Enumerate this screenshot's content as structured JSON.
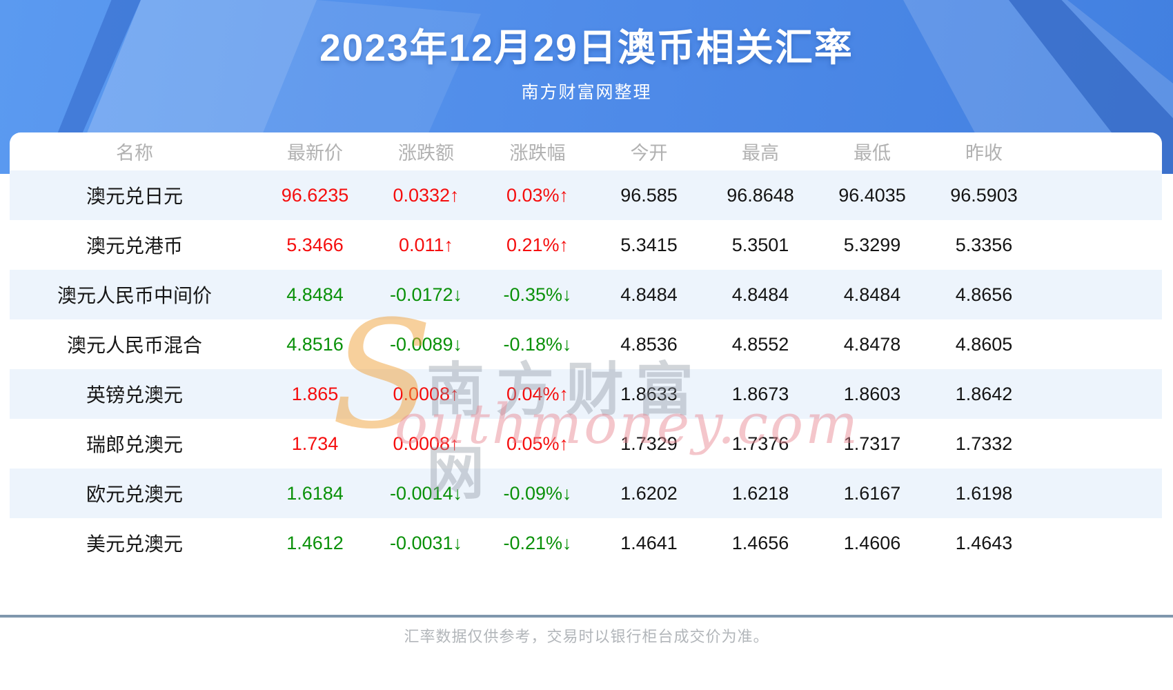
{
  "banner": {
    "title": "2023年12月29日澳币相关汇率",
    "subtitle": "南方财富网整理"
  },
  "table": {
    "columns": [
      "名称",
      "最新价",
      "涨跌额",
      "涨跌幅",
      "今开",
      "最高",
      "最低",
      "昨收"
    ],
    "rows": [
      {
        "name": "澳元兑日元",
        "latest": "96.6235",
        "change": "0.0332↑",
        "change_pct": "0.03%↑",
        "direction": "up",
        "open": "96.585",
        "high": "96.8648",
        "low": "96.4035",
        "prev_close": "96.5903"
      },
      {
        "name": "澳元兑港币",
        "latest": "5.3466",
        "change": "0.011↑",
        "change_pct": "0.21%↑",
        "direction": "up",
        "open": "5.3415",
        "high": "5.3501",
        "low": "5.3299",
        "prev_close": "5.3356"
      },
      {
        "name": "澳元人民币中间价",
        "latest": "4.8484",
        "change": "-0.0172↓",
        "change_pct": "-0.35%↓",
        "direction": "down",
        "open": "4.8484",
        "high": "4.8484",
        "low": "4.8484",
        "prev_close": "4.8656"
      },
      {
        "name": "澳元人民币混合",
        "latest": "4.8516",
        "change": "-0.0089↓",
        "change_pct": "-0.18%↓",
        "direction": "down",
        "open": "4.8536",
        "high": "4.8552",
        "low": "4.8478",
        "prev_close": "4.8605"
      },
      {
        "name": "英镑兑澳元",
        "latest": "1.865",
        "change": "0.0008↑",
        "change_pct": "0.04%↑",
        "direction": "up",
        "open": "1.8633",
        "high": "1.8673",
        "low": "1.8603",
        "prev_close": "1.8642"
      },
      {
        "name": "瑞郎兑澳元",
        "latest": "1.734",
        "change": "0.0008↑",
        "change_pct": "0.05%↑",
        "direction": "up",
        "open": "1.7329",
        "high": "1.7376",
        "low": "1.7317",
        "prev_close": "1.7332"
      },
      {
        "name": "欧元兑澳元",
        "latest": "1.6184",
        "change": "-0.0014↓",
        "change_pct": "-0.09%↓",
        "direction": "down",
        "open": "1.6202",
        "high": "1.6218",
        "low": "1.6167",
        "prev_close": "1.6198"
      },
      {
        "name": "美元兑澳元",
        "latest": "1.4612",
        "change": "-0.0031↓",
        "change_pct": "-0.21%↓",
        "direction": "down",
        "open": "1.4641",
        "high": "1.4656",
        "low": "1.4606",
        "prev_close": "1.4643"
      }
    ]
  },
  "watermark": {
    "swoosh": "S",
    "cn": "南方财富网",
    "en": "outhmoney.com"
  },
  "footer": {
    "note": "汇率数据仅供参考，交易时以银行柜台成交价为准。"
  },
  "colors": {
    "up": "#f50d0d",
    "down": "#0a9109",
    "stripe": "#edf4fc",
    "banner_blue": "#4e8ae8",
    "divider": "#7f97ad",
    "header_text": "#b1b1b1"
  }
}
